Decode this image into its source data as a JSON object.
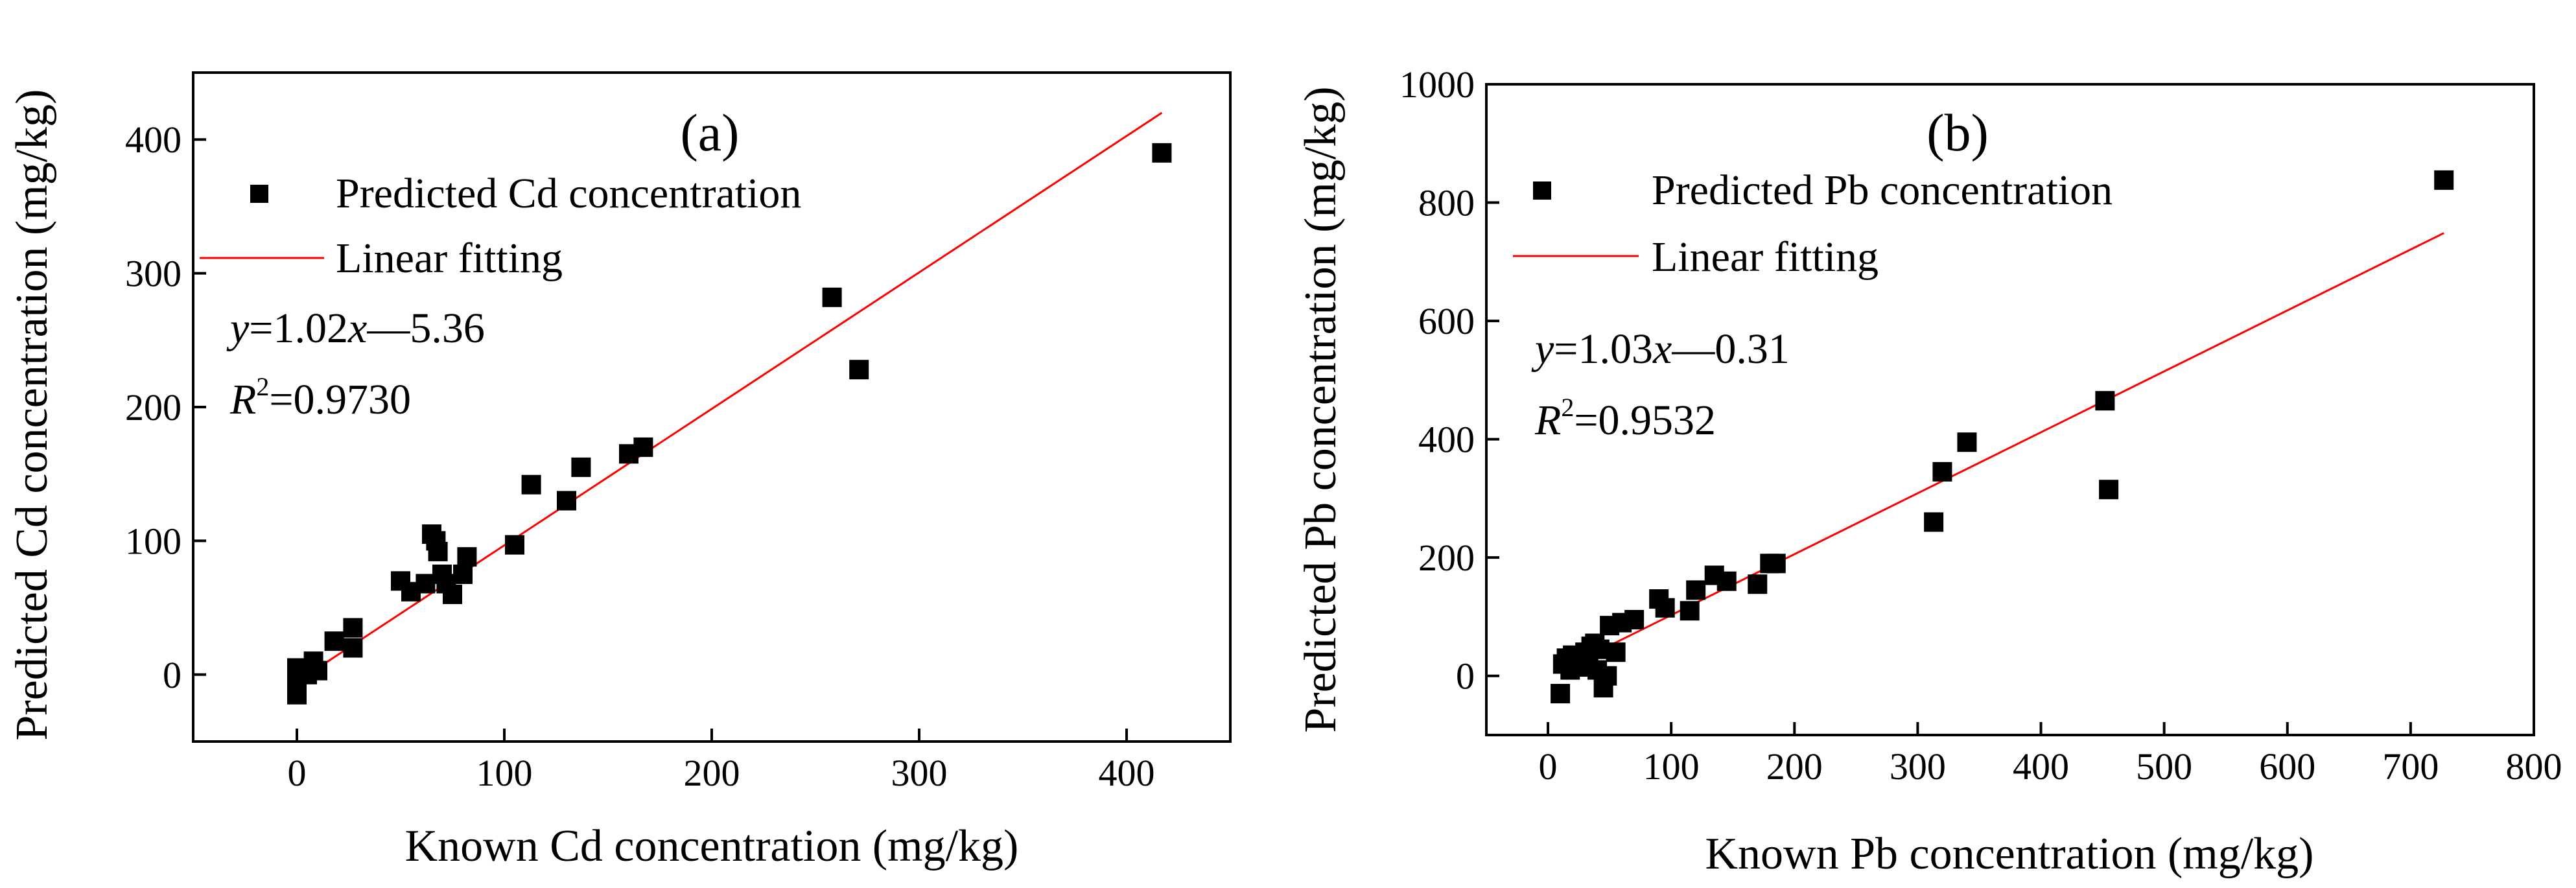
{
  "colors": {
    "fit_line": "#ff0000",
    "points": "#000000",
    "axes": "#000000"
  },
  "chart_data": [
    {
      "type": "scatter",
      "panel_label": "(a)",
      "xlabel": "Known Cd concentration (mg/kg)",
      "ylabel": "Predicted Cd concentration (mg/kg)",
      "xlim": [
        -50,
        450
      ],
      "ylim": [
        -50,
        450
      ],
      "xticks": [
        0,
        100,
        200,
        300,
        400
      ],
      "yticks": [
        0,
        100,
        200,
        300,
        400
      ],
      "legend": {
        "points": "Predicted Cd concentration",
        "line": "Linear fitting"
      },
      "equation": {
        "y": "y",
        "eq1": "=1.02",
        "x": "x",
        "eq2": "—5.36"
      },
      "r2": {
        "r": "R",
        "sup": "2",
        "value": "=0.9730"
      },
      "fit": {
        "slope": 1.02,
        "intercept": -5.36,
        "x_range": [
          0,
          417
        ]
      },
      "points": [
        [
          0,
          -15
        ],
        [
          0,
          -5
        ],
        [
          0,
          5
        ],
        [
          5,
          0
        ],
        [
          8,
          10
        ],
        [
          10,
          3
        ],
        [
          18,
          25
        ],
        [
          27,
          35
        ],
        [
          27,
          20
        ],
        [
          50,
          70
        ],
        [
          55,
          62
        ],
        [
          62,
          68
        ],
        [
          65,
          105
        ],
        [
          67,
          100
        ],
        [
          68,
          92
        ],
        [
          70,
          75
        ],
        [
          72,
          68
        ],
        [
          75,
          60
        ],
        [
          80,
          75
        ],
        [
          82,
          88
        ],
        [
          105,
          97
        ],
        [
          113,
          142
        ],
        [
          130,
          130
        ],
        [
          137,
          155
        ],
        [
          160,
          165
        ],
        [
          167,
          170
        ],
        [
          258,
          282
        ],
        [
          271,
          228
        ],
        [
          417,
          390
        ]
      ]
    },
    {
      "type": "scatter",
      "panel_label": "(b)",
      "xlabel": "Known Pb concentration (mg/kg)",
      "ylabel": "Predicted Pb concentration (mg/kg)",
      "xlim": [
        -50,
        800
      ],
      "ylim": [
        -100,
        1000
      ],
      "xticks": [
        0,
        100,
        200,
        300,
        400,
        500,
        600,
        700,
        800
      ],
      "yticks": [
        0,
        200,
        400,
        600,
        800,
        1000
      ],
      "legend": {
        "points": "Predicted Pb concentration",
        "line": "Linear fitting"
      },
      "equation": {
        "y": "y",
        "eq1": "=1.03",
        "x": "x",
        "eq2": "—0.31"
      },
      "r2": {
        "r": "R",
        "sup": "2",
        "value": "=0.9532"
      },
      "fit": {
        "slope": 1.03,
        "intercept": -0.31,
        "x_range": [
          10,
          727
        ]
      },
      "points": [
        [
          10,
          -30
        ],
        [
          12,
          20
        ],
        [
          15,
          30
        ],
        [
          18,
          10
        ],
        [
          20,
          35
        ],
        [
          25,
          25
        ],
        [
          28,
          15
        ],
        [
          30,
          40
        ],
        [
          33,
          30
        ],
        [
          35,
          50
        ],
        [
          38,
          55
        ],
        [
          40,
          10
        ],
        [
          42,
          45
        ],
        [
          45,
          -20
        ],
        [
          48,
          0
        ],
        [
          50,
          85
        ],
        [
          55,
          40
        ],
        [
          60,
          90
        ],
        [
          70,
          95
        ],
        [
          90,
          130
        ],
        [
          95,
          115
        ],
        [
          115,
          110
        ],
        [
          120,
          145
        ],
        [
          135,
          170
        ],
        [
          145,
          160
        ],
        [
          170,
          155
        ],
        [
          180,
          190
        ],
        [
          185,
          190
        ],
        [
          313,
          260
        ],
        [
          320,
          345
        ],
        [
          340,
          395
        ],
        [
          452,
          465
        ],
        [
          455,
          315
        ],
        [
          727,
          838
        ]
      ]
    }
  ]
}
